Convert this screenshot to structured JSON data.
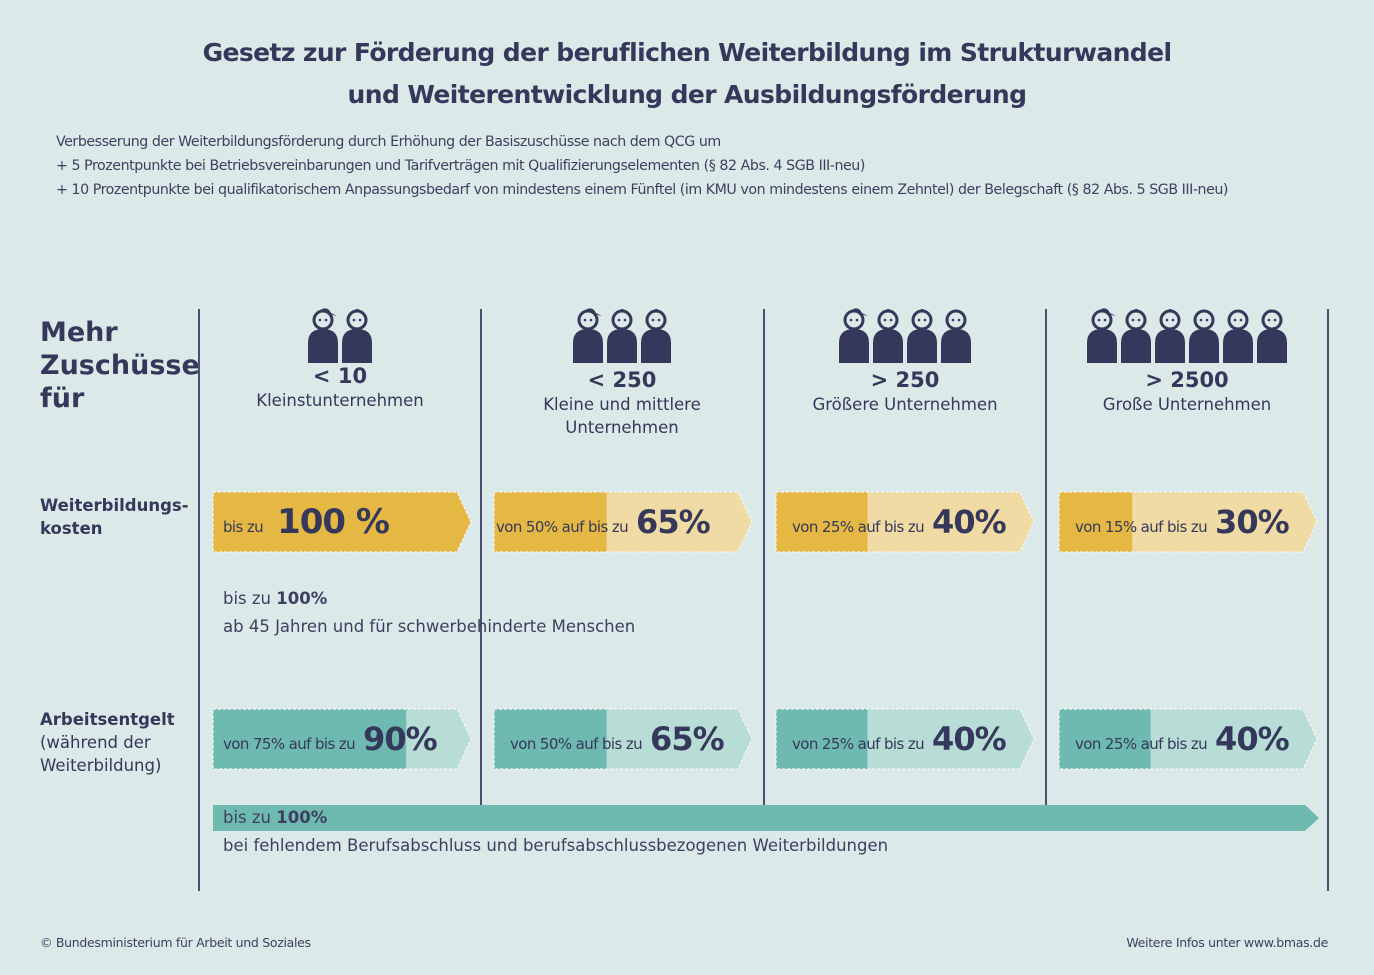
{
  "title": {
    "line1": "Gesetz zur Förderung der beruflichen Weiterbildung im Strukturwandel",
    "line2": "und Weiterentwicklung der Ausbildungsförderung"
  },
  "intro": [
    "Verbesserung der Weiterbildungsförderung durch Erhöhung der Basiszuschüsse nach dem QCG um",
    "+ 5 Prozentpunkte bei Betriebsvereinbarungen und Tarifverträgen mit Qualifizierungselementen (§ 82 Abs. 4 SGB III-neu)",
    "+ 10 Prozentpunkte bei qualifikatorischem Anpassungsbedarf von mindestens einem Fünftel (im KMU von mindestens einem Zehntel) der Belegschaft (§ 82 Abs. 5 SGB III-neu)"
  ],
  "side_heading": [
    "Mehr",
    "Zuschüsse",
    "für"
  ],
  "row_labels": {
    "weiterbildungskosten": [
      "Weiterbildungs-",
      "kosten"
    ],
    "arbeitsentgelt_bold": "Arbeitsentgelt",
    "arbeitsentgelt_rest": [
      "(während der",
      "Weiterbildung)"
    ]
  },
  "colors": {
    "background": "#dce9e9",
    "text": "#35385a",
    "yellow_base": "#e5b843",
    "yellow_light": "#f1dba4",
    "teal_base": "#6fbab0",
    "teal_light": "#b8dcd6",
    "line": "#4a4e6e"
  },
  "chart_data": {
    "type": "table",
    "title": "Gesetz zur Förderung der beruflichen Weiterbildung im Strukturwandel und Weiterentwicklung der Ausbildungsförderung",
    "categories": [
      {
        "size": "< 10",
        "label": "Kleinstunternehmen",
        "people_icons": 2
      },
      {
        "size": "< 250",
        "label": "Kleine und mittlere Unternehmen",
        "people_icons": 3
      },
      {
        "size": "> 250",
        "label": "Größere Unternehmen",
        "people_icons": 4
      },
      {
        "size": "> 2500",
        "label": "Große Unternehmen",
        "people_icons": 6
      }
    ],
    "series": [
      {
        "name": "Weiterbildungskosten",
        "from_values": [
          null,
          50,
          25,
          15
        ],
        "to_values": [
          100,
          65,
          40,
          30
        ],
        "prefix_text": [
          "bis zu",
          "von 50% auf bis zu",
          "von 25% auf bis zu",
          "von 15% auf bis zu"
        ],
        "big_text": [
          "100 %",
          "65%",
          "40%",
          "30%"
        ]
      },
      {
        "name": "Arbeitsentgelt (während der Weiterbildung)",
        "from_values": [
          75,
          50,
          25,
          25
        ],
        "to_values": [
          90,
          65,
          40,
          40
        ],
        "prefix_text": [
          "von 75% auf bis zu",
          "von 50% auf bis zu",
          "von 25% auf bis zu",
          "von 25% auf bis zu"
        ],
        "big_text": [
          "90%",
          "65%",
          "40%",
          "40%"
        ]
      }
    ],
    "notes": [
      {
        "bold_prefix": "bis zu ",
        "bold": "100%",
        "line2": "ab 45 Jahren und für schwerbehinderte Menschen",
        "applies_to": "Weiterbildungskosten"
      },
      {
        "bold_prefix": "bis zu ",
        "bold": "100%",
        "line2": "bei fehlendem Berufsabschluss und berufsabschlussbezogenen Weiterbildungen",
        "applies_to": "Arbeitsentgelt",
        "value": 100
      }
    ]
  },
  "footer": {
    "left": "© Bundesministerium für Arbeit und Soziales",
    "right": "Weitere Infos unter www.bmas.de"
  }
}
